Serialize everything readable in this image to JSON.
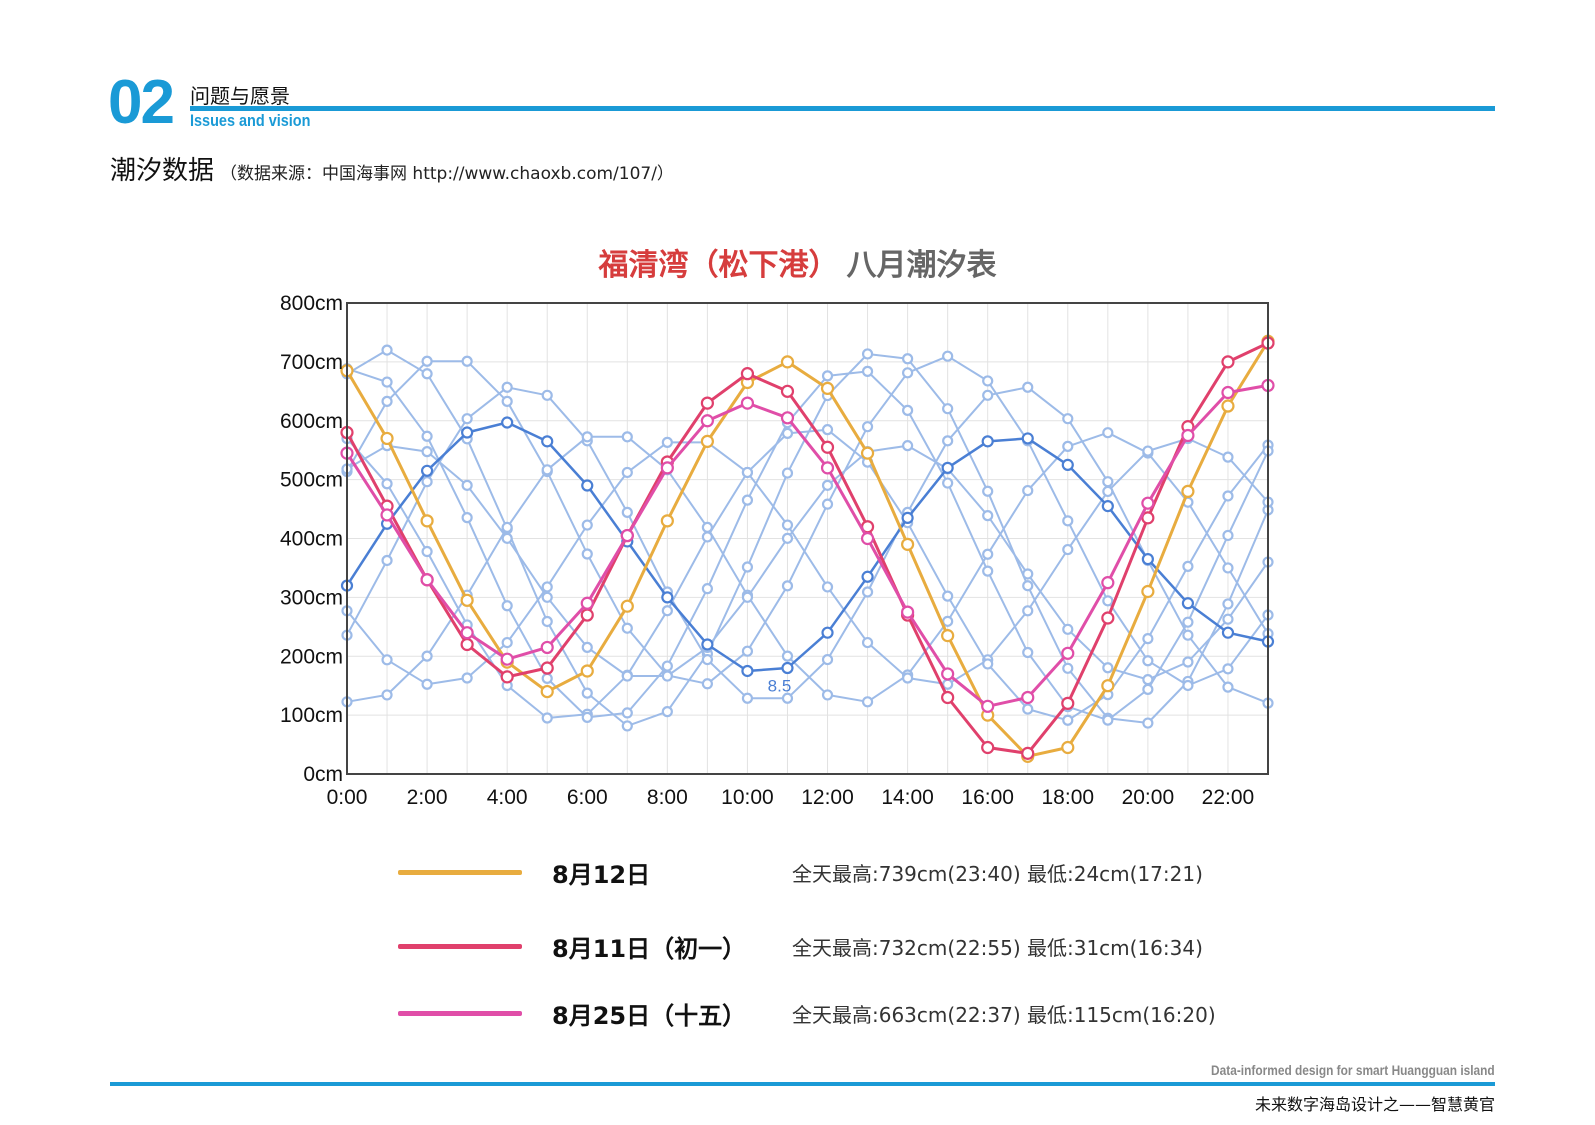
{
  "header": {
    "section_number": "02",
    "section_title_cn": "问题与愿景",
    "section_title_en": "Issues and vision"
  },
  "heading": {
    "title": "潮汐数据",
    "source": "（数据来源：中国海事网 http://www.chaoxb.com/107/）"
  },
  "chart_title": {
    "red": "福清湾（松下港）",
    "gray": "八月潮汐表"
  },
  "legend": [
    {
      "label": "8月12日",
      "note": "全天最高:739cm(23:40) 最低:24cm(17:21)",
      "color": "#e8ac3f"
    },
    {
      "label": "8月11日（初一）",
      "note": "全天最高:732cm(22:55) 最低:31cm(16:34)",
      "color": "#e0406c"
    },
    {
      "label": "8月25日（十五）",
      "note": "全天最高:663cm(22:37) 最低:115cm(16:20)",
      "color": "#e04ea8"
    }
  ],
  "footer": {
    "en": "Data-informed design for smart Huangguan island",
    "cn": "未来数字海岛设计之——智慧黄官"
  },
  "chart_data": {
    "type": "line",
    "title": "福清湾（松下港）八月潮汐表",
    "xlabel": "",
    "ylabel": "",
    "x_ticks": [
      "0:00",
      "2:00",
      "4:00",
      "6:00",
      "8:00",
      "10:00",
      "12:00",
      "14:00",
      "16:00",
      "18:00",
      "20:00",
      "22:00"
    ],
    "y_ticks": [
      "0cm",
      "100cm",
      "200cm",
      "300cm",
      "400cm",
      "500cm",
      "600cm",
      "700cm",
      "800cm"
    ],
    "xlim": [
      0,
      23
    ],
    "ylim": [
      0,
      800
    ],
    "grid": true,
    "legend_position": "bottom",
    "colors": {
      "other_days": "#9dbbe8",
      "aug5": "#4a7fd4"
    },
    "annotations": [
      {
        "text": "8.5",
        "x": 10.8,
        "y": 140
      }
    ],
    "highlight_series": [
      {
        "name": "8月12日",
        "color": "#e8ac3f",
        "x": [
          0,
          1,
          2,
          3,
          4,
          5,
          6,
          7,
          8,
          9,
          10,
          11,
          12,
          13,
          14,
          15,
          16,
          17,
          18,
          19,
          20,
          21,
          22,
          23
        ],
        "values": [
          685,
          570,
          430,
          295,
          190,
          140,
          175,
          285,
          430,
          565,
          665,
          700,
          655,
          545,
          390,
          235,
          100,
          30,
          45,
          150,
          310,
          480,
          625,
          735
        ]
      },
      {
        "name": "8月11日（初一）",
        "color": "#e0406c",
        "x": [
          0,
          1,
          2,
          3,
          4,
          5,
          6,
          7,
          8,
          9,
          10,
          11,
          12,
          13,
          14,
          15,
          16,
          17,
          18,
          19,
          20,
          21,
          22,
          23
        ],
        "values": [
          580,
          455,
          330,
          220,
          165,
          180,
          270,
          405,
          530,
          630,
          680,
          650,
          555,
          420,
          270,
          130,
          45,
          35,
          120,
          265,
          435,
          590,
          700,
          732
        ]
      },
      {
        "name": "8月25日（十五）",
        "color": "#e04ea8",
        "x": [
          0,
          1,
          2,
          3,
          4,
          5,
          6,
          7,
          8,
          9,
          10,
          11,
          12,
          13,
          14,
          15,
          16,
          17,
          18,
          19,
          20,
          21,
          22,
          23
        ],
        "values": [
          545,
          440,
          330,
          240,
          195,
          215,
          290,
          405,
          520,
          600,
          630,
          605,
          520,
          400,
          275,
          170,
          115,
          130,
          205,
          325,
          460,
          575,
          648,
          660
        ]
      }
    ],
    "aug5_series": {
      "color": "#4a7fd4",
      "x": [
        0,
        1,
        2,
        3,
        4,
        5,
        6,
        7,
        8,
        9,
        10,
        11,
        12,
        13,
        14,
        15,
        16,
        17,
        18,
        19,
        20,
        21,
        22,
        23
      ],
      "values": [
        320,
        425,
        515,
        580,
        597,
        565,
        490,
        395,
        300,
        220,
        175,
        180,
        240,
        335,
        435,
        520,
        565,
        570,
        525,
        455,
        365,
        290,
        240,
        225
      ]
    },
    "other_series": [
      {
        "mean": 400,
        "amp": 320,
        "peak": 1.0
      },
      {
        "mean": 430,
        "amp": 280,
        "peak": 2.5
      },
      {
        "mean": 390,
        "amp": 270,
        "peak": 4.3
      },
      {
        "mean": 350,
        "amp": 230,
        "peak": 6.5
      },
      {
        "mean": 360,
        "amp": 210,
        "peak": 8.5
      },
      {
        "mean": 340,
        "amp": 250,
        "peak": 11.6
      },
      {
        "mean": 360,
        "amp": 200,
        "peak": 13.7
      },
      {
        "mean": 390,
        "amp": 300,
        "peak": 0.2
      }
    ]
  }
}
